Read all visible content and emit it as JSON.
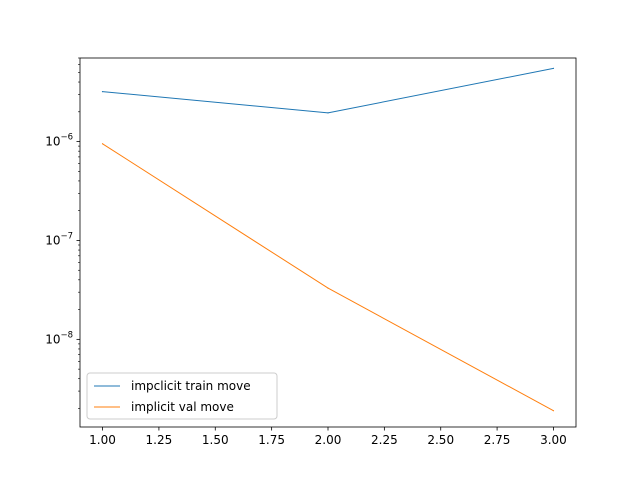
{
  "chart_data": {
    "type": "line",
    "title": "",
    "xlabel": "",
    "ylabel": "",
    "yscale": "log",
    "xlim": [
      0.9,
      3.1
    ],
    "ylim": [
      1.3e-09,
      7e-06
    ],
    "x_ticks": [
      1.0,
      1.25,
      1.5,
      1.75,
      2.0,
      2.25,
      2.5,
      2.75,
      3.0
    ],
    "x_tick_labels": [
      "1.00",
      "1.25",
      "1.50",
      "1.75",
      "2.00",
      "2.25",
      "2.50",
      "2.75",
      "3.00"
    ],
    "y_major_ticks": [
      {
        "value": 1e-08,
        "base": "10",
        "exp": "−8"
      },
      {
        "value": 1e-07,
        "base": "10",
        "exp": "−7"
      },
      {
        "value": 1e-06,
        "base": "10",
        "exp": "−6"
      }
    ],
    "legend_position": "lower-left",
    "grid": false,
    "series": [
      {
        "name": "impclicit train move",
        "color": "#1f77b4",
        "x": [
          1,
          2,
          3
        ],
        "y": [
          3.2e-06,
          1.95e-06,
          5.5e-06
        ]
      },
      {
        "name": "implicit val move",
        "color": "#ff7f0e",
        "x": [
          1,
          2,
          3
        ],
        "y": [
          9.5e-07,
          3.3e-08,
          1.9e-09
        ]
      }
    ]
  }
}
